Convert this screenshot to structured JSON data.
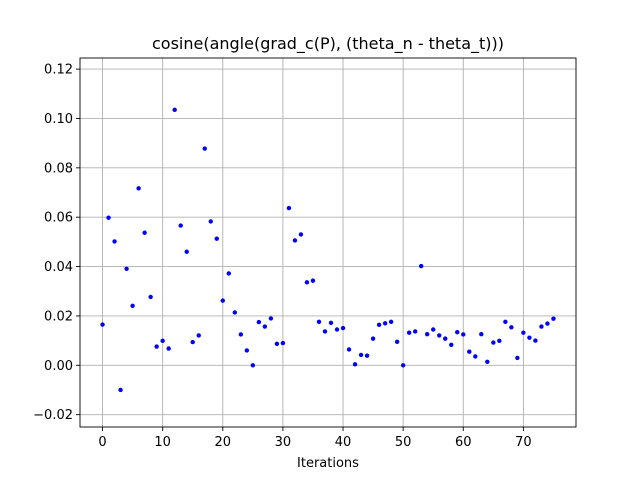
{
  "chart_data": {
    "type": "scatter",
    "title": "cosine(angle(grad_c(P), (theta_n - theta_t)))",
    "xlabel": "Iterations",
    "ylabel": "",
    "xlim": [
      -3.75,
      78.75
    ],
    "ylim": [
      -0.025,
      0.1245
    ],
    "grid": true,
    "marker_color": "#0000ff",
    "x_ticks": [
      0,
      10,
      20,
      30,
      40,
      50,
      60,
      70
    ],
    "x_tick_labels": [
      "0",
      "10",
      "20",
      "30",
      "40",
      "50",
      "60",
      "70"
    ],
    "y_ticks": [
      -0.02,
      0.0,
      0.02,
      0.04,
      0.06,
      0.08,
      0.1,
      0.12
    ],
    "y_tick_labels": [
      "−0.02",
      "0.00",
      "0.02",
      "0.04",
      "0.06",
      "0.08",
      "0.10",
      "0.12"
    ],
    "series": [
      {
        "x": [
          0,
          1,
          2,
          3,
          4,
          5,
          6,
          7,
          8,
          9,
          10,
          11,
          12,
          13,
          14,
          15,
          16,
          17,
          18,
          19,
          20,
          21,
          22,
          23,
          24,
          25,
          26,
          27,
          28,
          29,
          30,
          31,
          32,
          33,
          34,
          35,
          36,
          37,
          38,
          39,
          40,
          41,
          42,
          43,
          44,
          45,
          46,
          47,
          48,
          49,
          50,
          51,
          52,
          53,
          54,
          55,
          56,
          57,
          58,
          59,
          60,
          61,
          62,
          63,
          64,
          65,
          66,
          67,
          68,
          69,
          70,
          71,
          72,
          73,
          74,
          75
        ],
        "y": [
          0.0165,
          0.0598,
          0.0502,
          -0.01,
          0.0391,
          0.0241,
          0.0717,
          0.0537,
          0.0277,
          0.0076,
          0.0099,
          0.0068,
          0.1035,
          0.0566,
          0.046,
          0.0094,
          0.0121,
          0.0878,
          0.0583,
          0.0513,
          0.0262,
          0.0372,
          0.0214,
          0.0125,
          0.006,
          0.0,
          0.0175,
          0.0157,
          0.019,
          0.0087,
          0.009,
          0.0637,
          0.0506,
          0.053,
          0.0336,
          0.0343,
          0.0176,
          0.0137,
          0.0172,
          0.0145,
          0.0151,
          0.0064,
          0.0004,
          0.0042,
          0.0039,
          0.0108,
          0.0164,
          0.017,
          0.0176,
          0.0095,
          0.0,
          0.0132,
          0.0137,
          0.0402,
          0.0126,
          0.0145,
          0.0121,
          0.0108,
          0.0083,
          0.0134,
          0.0125,
          0.0055,
          0.0036,
          0.0126,
          0.0014,
          0.0092,
          0.0099,
          0.0176,
          0.0154,
          0.003,
          0.0132,
          0.0112,
          0.01,
          0.0157,
          0.0169,
          0.0189
        ]
      }
    ]
  }
}
